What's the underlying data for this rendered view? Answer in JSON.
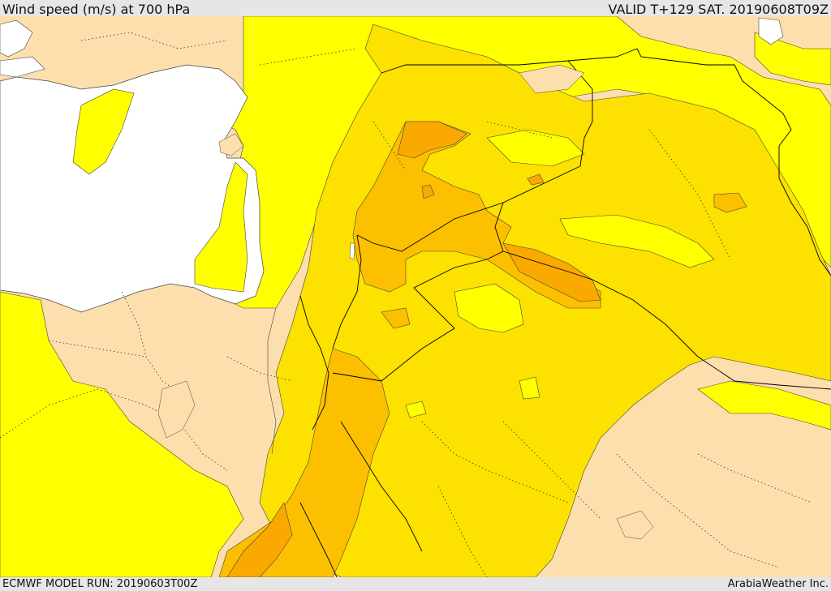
{
  "header": {
    "title": "Wind speed (m/s) at 700 hPa",
    "valid": "VALID T+129 SAT. 20190608T09Z"
  },
  "footer": {
    "model_run": "ECMWF MODEL RUN: 20190603T00Z",
    "brand": "ArabiaWeather Inc."
  },
  "colors": {
    "land_calm": "#fddfad",
    "band_1": "#ffff00",
    "band_2": "#fde100",
    "band_3": "#fcc000",
    "band_4": "#f9a900",
    "sea": "#ffffff",
    "border": "#000000"
  }
}
